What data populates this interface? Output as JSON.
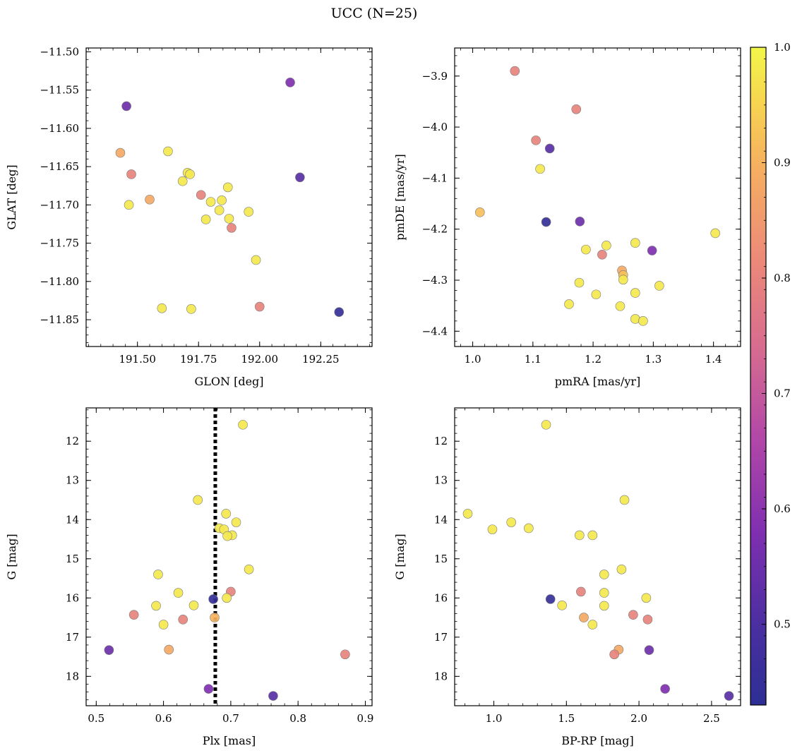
{
  "title": "UCC (N=25)",
  "colorbar": {
    "range": [
      0.43,
      1.0
    ],
    "ticks": [
      0.5,
      0.6,
      0.7,
      0.8,
      0.9,
      1.0
    ],
    "tick_labels": [
      "0.5",
      "0.6",
      "0.7",
      "0.8",
      "0.9",
      "1.0"
    ],
    "colormap": "plasma"
  },
  "chart_data": [
    {
      "type": "scatter",
      "xlabel": "GLON [deg]",
      "ylabel": "GLAT [deg]",
      "xlim": [
        191.29,
        192.46
      ],
      "ylim": [
        -11.885,
        -11.495
      ],
      "xticks": [
        191.5,
        191.75,
        192.0,
        192.25
      ],
      "xtick_labels": [
        "191.50",
        "191.75",
        "192.00",
        "192.25"
      ],
      "yticks": [
        -11.5,
        -11.55,
        -11.6,
        -11.65,
        -11.7,
        -11.75,
        -11.8,
        -11.85
      ],
      "ytick_labels": [
        "−11.50",
        "−11.55",
        "−11.60",
        "−11.65",
        "−11.70",
        "−11.75",
        "−11.80",
        "−11.85"
      ],
      "grid": false,
      "points": [
        {
          "x": 191.455,
          "y": -11.571,
          "c": 0.55
        },
        {
          "x": 191.43,
          "y": -11.632,
          "c": 0.88
        },
        {
          "x": 191.475,
          "y": -11.66,
          "c": 0.8
        },
        {
          "x": 191.465,
          "y": -11.7,
          "c": 0.98
        },
        {
          "x": 191.55,
          "y": -11.693,
          "c": 0.88
        },
        {
          "x": 191.625,
          "y": -11.63,
          "c": 0.98
        },
        {
          "x": 191.705,
          "y": -11.658,
          "c": 0.98
        },
        {
          "x": 191.715,
          "y": -11.66,
          "c": 0.98
        },
        {
          "x": 191.685,
          "y": -11.669,
          "c": 0.98
        },
        {
          "x": 191.76,
          "y": -11.687,
          "c": 0.8
        },
        {
          "x": 191.8,
          "y": -11.696,
          "c": 0.98
        },
        {
          "x": 191.845,
          "y": -11.694,
          "c": 0.98
        },
        {
          "x": 191.87,
          "y": -11.677,
          "c": 0.98
        },
        {
          "x": 191.835,
          "y": -11.707,
          "c": 0.98
        },
        {
          "x": 191.78,
          "y": -11.719,
          "c": 0.98
        },
        {
          "x": 191.875,
          "y": -11.718,
          "c": 0.98
        },
        {
          "x": 191.885,
          "y": -11.73,
          "c": 0.8
        },
        {
          "x": 191.955,
          "y": -11.709,
          "c": 0.98
        },
        {
          "x": 191.985,
          "y": -11.772,
          "c": 0.98
        },
        {
          "x": 191.6,
          "y": -11.835,
          "c": 0.98
        },
        {
          "x": 191.72,
          "y": -11.836,
          "c": 0.98
        },
        {
          "x": 192.0,
          "y": -11.833,
          "c": 0.8
        },
        {
          "x": 192.125,
          "y": -11.54,
          "c": 0.58
        },
        {
          "x": 192.165,
          "y": -11.664,
          "c": 0.52
        },
        {
          "x": 192.325,
          "y": -11.84,
          "c": 0.45
        }
      ]
    },
    {
      "type": "scatter",
      "xlabel": "pmRA [mas/yr]",
      "ylabel": "pmDE [mas/yr]",
      "xlim": [
        0.97,
        1.445
      ],
      "ylim": [
        -4.43,
        -3.845
      ],
      "xticks": [
        1.0,
        1.1,
        1.2,
        1.3,
        1.4
      ],
      "xtick_labels": [
        "1.0",
        "1.1",
        "1.2",
        "1.3",
        "1.4"
      ],
      "yticks": [
        -3.9,
        -4.0,
        -4.1,
        -4.2,
        -4.3,
        -4.4
      ],
      "ytick_labels": [
        "−3.9",
        "−4.0",
        "−4.1",
        "−4.2",
        "−4.3",
        "−4.4"
      ],
      "grid": false,
      "points": [
        {
          "x": 1.07,
          "y": -3.89,
          "c": 0.8
        },
        {
          "x": 1.172,
          "y": -3.965,
          "c": 0.8
        },
        {
          "x": 1.105,
          "y": -4.026,
          "c": 0.8
        },
        {
          "x": 1.128,
          "y": -4.042,
          "c": 0.52
        },
        {
          "x": 1.112,
          "y": -4.082,
          "c": 0.98
        },
        {
          "x": 1.012,
          "y": -4.167,
          "c": 0.92
        },
        {
          "x": 1.122,
          "y": -4.186,
          "c": 0.45
        },
        {
          "x": 1.178,
          "y": -4.185,
          "c": 0.55
        },
        {
          "x": 1.403,
          "y": -4.208,
          "c": 0.98
        },
        {
          "x": 1.27,
          "y": -4.227,
          "c": 0.98
        },
        {
          "x": 1.222,
          "y": -4.232,
          "c": 0.98
        },
        {
          "x": 1.188,
          "y": -4.24,
          "c": 0.98
        },
        {
          "x": 1.298,
          "y": -4.242,
          "c": 0.58
        },
        {
          "x": 1.215,
          "y": -4.25,
          "c": 0.8
        },
        {
          "x": 1.248,
          "y": -4.281,
          "c": 0.88
        },
        {
          "x": 1.25,
          "y": -4.29,
          "c": 0.92
        },
        {
          "x": 1.25,
          "y": -4.299,
          "c": 0.98
        },
        {
          "x": 1.177,
          "y": -4.305,
          "c": 0.98
        },
        {
          "x": 1.31,
          "y": -4.311,
          "c": 0.98
        },
        {
          "x": 1.205,
          "y": -4.328,
          "c": 0.98
        },
        {
          "x": 1.27,
          "y": -4.325,
          "c": 0.98
        },
        {
          "x": 1.16,
          "y": -4.347,
          "c": 0.98
        },
        {
          "x": 1.245,
          "y": -4.351,
          "c": 0.98
        },
        {
          "x": 1.27,
          "y": -4.376,
          "c": 0.98
        },
        {
          "x": 1.283,
          "y": -4.38,
          "c": 0.98
        }
      ]
    },
    {
      "type": "scatter",
      "xlabel": "Plx [mas]",
      "ylabel": "G [mag]",
      "xlim": [
        0.485,
        0.91
      ],
      "ylim": [
        18.75,
        11.15
      ],
      "y_inverted": true,
      "xticks": [
        0.5,
        0.6,
        0.7,
        0.8,
        0.9
      ],
      "xtick_labels": [
        "0.5",
        "0.6",
        "0.7",
        "0.8",
        "0.9"
      ],
      "yticks": [
        12,
        13,
        14,
        15,
        16,
        17,
        18
      ],
      "ytick_labels": [
        "12",
        "13",
        "14",
        "15",
        "16",
        "17",
        "18"
      ],
      "grid": false,
      "vline": {
        "x": 0.677,
        "style": "dotted"
      },
      "points": [
        {
          "x": 0.718,
          "y": 11.58,
          "c": 0.98
        },
        {
          "x": 0.651,
          "y": 13.5,
          "c": 0.98
        },
        {
          "x": 0.693,
          "y": 13.85,
          "c": 0.98
        },
        {
          "x": 0.708,
          "y": 14.07,
          "c": 0.98
        },
        {
          "x": 0.683,
          "y": 14.22,
          "c": 0.98
        },
        {
          "x": 0.69,
          "y": 14.25,
          "c": 0.98
        },
        {
          "x": 0.702,
          "y": 14.4,
          "c": 0.98
        },
        {
          "x": 0.695,
          "y": 14.42,
          "c": 0.98
        },
        {
          "x": 0.727,
          "y": 15.27,
          "c": 0.98
        },
        {
          "x": 0.592,
          "y": 15.4,
          "c": 0.98
        },
        {
          "x": 0.7,
          "y": 15.84,
          "c": 0.8
        },
        {
          "x": 0.622,
          "y": 15.87,
          "c": 0.98
        },
        {
          "x": 0.694,
          "y": 16.0,
          "c": 0.98
        },
        {
          "x": 0.674,
          "y": 16.03,
          "c": 0.45
        },
        {
          "x": 0.589,
          "y": 16.2,
          "c": 0.98
        },
        {
          "x": 0.645,
          "y": 16.19,
          "c": 0.98
        },
        {
          "x": 0.556,
          "y": 16.43,
          "c": 0.8
        },
        {
          "x": 0.676,
          "y": 16.5,
          "c": 0.9
        },
        {
          "x": 0.629,
          "y": 16.55,
          "c": 0.8
        },
        {
          "x": 0.6,
          "y": 16.68,
          "c": 0.98
        },
        {
          "x": 0.519,
          "y": 17.33,
          "c": 0.55
        },
        {
          "x": 0.608,
          "y": 17.32,
          "c": 0.88
        },
        {
          "x": 0.87,
          "y": 17.44,
          "c": 0.8
        },
        {
          "x": 0.667,
          "y": 18.32,
          "c": 0.58
        },
        {
          "x": 0.763,
          "y": 18.5,
          "c": 0.52
        }
      ]
    },
    {
      "type": "scatter",
      "xlabel": "BP-RP [mag]",
      "ylabel": "G [mag]",
      "xlim": [
        0.73,
        2.7
      ],
      "ylim": [
        18.75,
        11.15
      ],
      "y_inverted": true,
      "xticks": [
        1.0,
        1.5,
        2.0,
        2.5
      ],
      "xtick_labels": [
        "1.0",
        "1.5",
        "2.0",
        "2.5"
      ],
      "yticks": [
        12,
        13,
        14,
        15,
        16,
        17,
        18
      ],
      "ytick_labels": [
        "12",
        "13",
        "14",
        "15",
        "16",
        "17",
        "18"
      ],
      "grid": false,
      "points": [
        {
          "x": 1.36,
          "y": 11.58,
          "c": 0.98
        },
        {
          "x": 1.9,
          "y": 13.5,
          "c": 0.98
        },
        {
          "x": 0.82,
          "y": 13.85,
          "c": 0.98
        },
        {
          "x": 1.12,
          "y": 14.07,
          "c": 0.98
        },
        {
          "x": 0.99,
          "y": 14.25,
          "c": 0.98
        },
        {
          "x": 1.24,
          "y": 14.22,
          "c": 0.98
        },
        {
          "x": 1.59,
          "y": 14.4,
          "c": 0.98
        },
        {
          "x": 1.68,
          "y": 14.4,
          "c": 0.98
        },
        {
          "x": 1.88,
          "y": 15.27,
          "c": 0.98
        },
        {
          "x": 1.76,
          "y": 15.4,
          "c": 0.98
        },
        {
          "x": 1.6,
          "y": 15.84,
          "c": 0.8
        },
        {
          "x": 1.76,
          "y": 15.87,
          "c": 0.98
        },
        {
          "x": 2.05,
          "y": 16.0,
          "c": 0.98
        },
        {
          "x": 1.39,
          "y": 16.03,
          "c": 0.45
        },
        {
          "x": 1.47,
          "y": 16.19,
          "c": 0.98
        },
        {
          "x": 1.76,
          "y": 16.2,
          "c": 0.98
        },
        {
          "x": 1.96,
          "y": 16.43,
          "c": 0.8
        },
        {
          "x": 1.62,
          "y": 16.5,
          "c": 0.88
        },
        {
          "x": 2.06,
          "y": 16.55,
          "c": 0.8
        },
        {
          "x": 1.68,
          "y": 16.68,
          "c": 0.98
        },
        {
          "x": 2.07,
          "y": 17.33,
          "c": 0.55
        },
        {
          "x": 1.86,
          "y": 17.32,
          "c": 0.88
        },
        {
          "x": 1.83,
          "y": 17.44,
          "c": 0.8
        },
        {
          "x": 2.18,
          "y": 18.32,
          "c": 0.58
        },
        {
          "x": 2.62,
          "y": 18.5,
          "c": 0.52
        }
      ]
    }
  ]
}
